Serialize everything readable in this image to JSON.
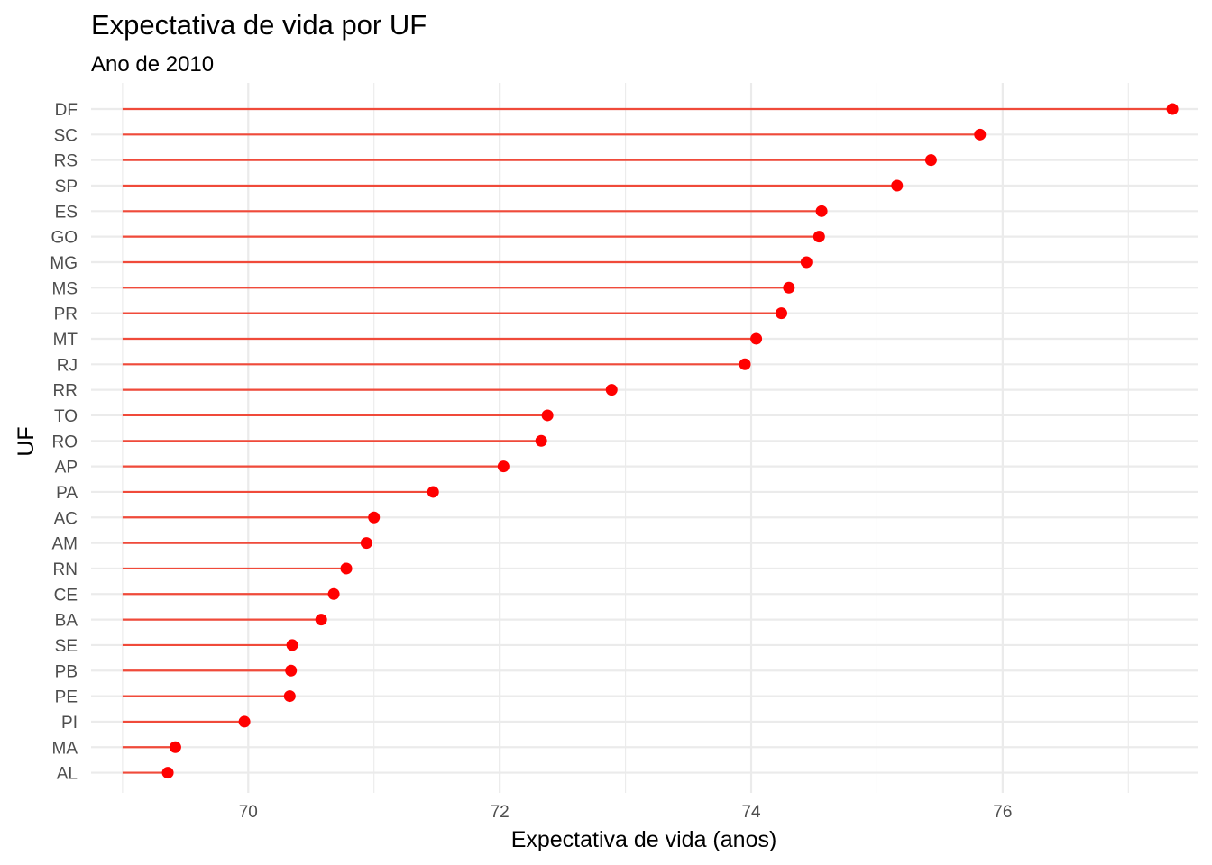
{
  "chart_data": {
    "type": "lollipop",
    "title": "Expectativa de vida por UF",
    "subtitle": "Ano de 2010",
    "xlabel": "Expectativa de vida (anos)",
    "ylabel": "UF",
    "xlim": [
      68.75,
      77.55
    ],
    "x_ticks": [
      70,
      72,
      74,
      76
    ],
    "baseline": 69.0,
    "grid": true,
    "colors": {
      "segment": "#f04a3a",
      "point": "#ff0000",
      "grid": "#ebebeb"
    },
    "categories": [
      "DF",
      "SC",
      "RS",
      "SP",
      "ES",
      "GO",
      "MG",
      "MS",
      "PR",
      "MT",
      "RJ",
      "RR",
      "TO",
      "RO",
      "AP",
      "PA",
      "AC",
      "AM",
      "RN",
      "CE",
      "BA",
      "SE",
      "PB",
      "PE",
      "PI",
      "MA",
      "AL"
    ],
    "values": [
      77.35,
      75.82,
      75.43,
      75.16,
      74.56,
      74.54,
      74.44,
      74.3,
      74.24,
      74.04,
      73.95,
      72.89,
      72.38,
      72.33,
      72.03,
      71.47,
      71.0,
      70.94,
      70.78,
      70.68,
      70.58,
      70.35,
      70.34,
      70.33,
      69.97,
      69.42,
      69.36
    ]
  }
}
